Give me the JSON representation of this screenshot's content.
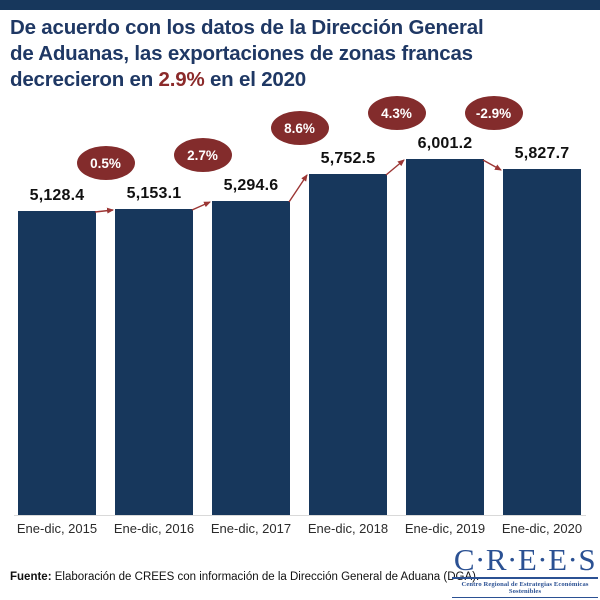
{
  "colors": {
    "navy": "#17375C",
    "title_navy": "#1F3864",
    "highlight_red": "#8B2A2A",
    "maroon": "#832C2C",
    "arrow_red": "#9C3634",
    "text_dark": "#111111",
    "axis_label_gray": "#2B2B2B",
    "logo_blue": "#2B5193"
  },
  "title": {
    "line1": "De acuerdo con los datos de la Dirección General",
    "line2": "de Aduanas, las exportaciones de zonas francas",
    "line3_before": "decrecieron en ",
    "line3_highlight": "2.9%",
    "line3_after": " en el 2020"
  },
  "chart_data": {
    "type": "bar",
    "categories": [
      "Ene-dic, 2015",
      "Ene-dic, 2016",
      "Ene-dic, 2017",
      "Ene-dic, 2018",
      "Ene-dic, 2019",
      "Ene-dic, 2020"
    ],
    "values": [
      5128.4,
      5153.1,
      5294.6,
      5752.5,
      6001.2,
      5827.7
    ],
    "value_labels": [
      "5,128.4",
      "5,153.1",
      "5,294.6",
      "5,752.5",
      "6,001.2",
      "5,827.7"
    ],
    "pct_changes": [
      "0.5%",
      "2.7%",
      "8.6%",
      "4.3%",
      "-2.9%"
    ],
    "title": "Exportaciones de zonas francas",
    "xlabel": "",
    "ylabel": "",
    "ylim": [
      0,
      6200
    ],
    "grid": false,
    "legend": "none",
    "bar_color": "#17375C",
    "oval_color": "#832C2C",
    "arrow_color": "#9C3634"
  },
  "footer": {
    "source_label": "Fuente:",
    "source_text": " Elaboración de CREES con información de la Dirección General de Aduana (DGA)."
  },
  "logo": {
    "acronym": "C·R·E·E·S",
    "tagline": "Centro Regional de Estrategias Económicas Sostenibles"
  }
}
